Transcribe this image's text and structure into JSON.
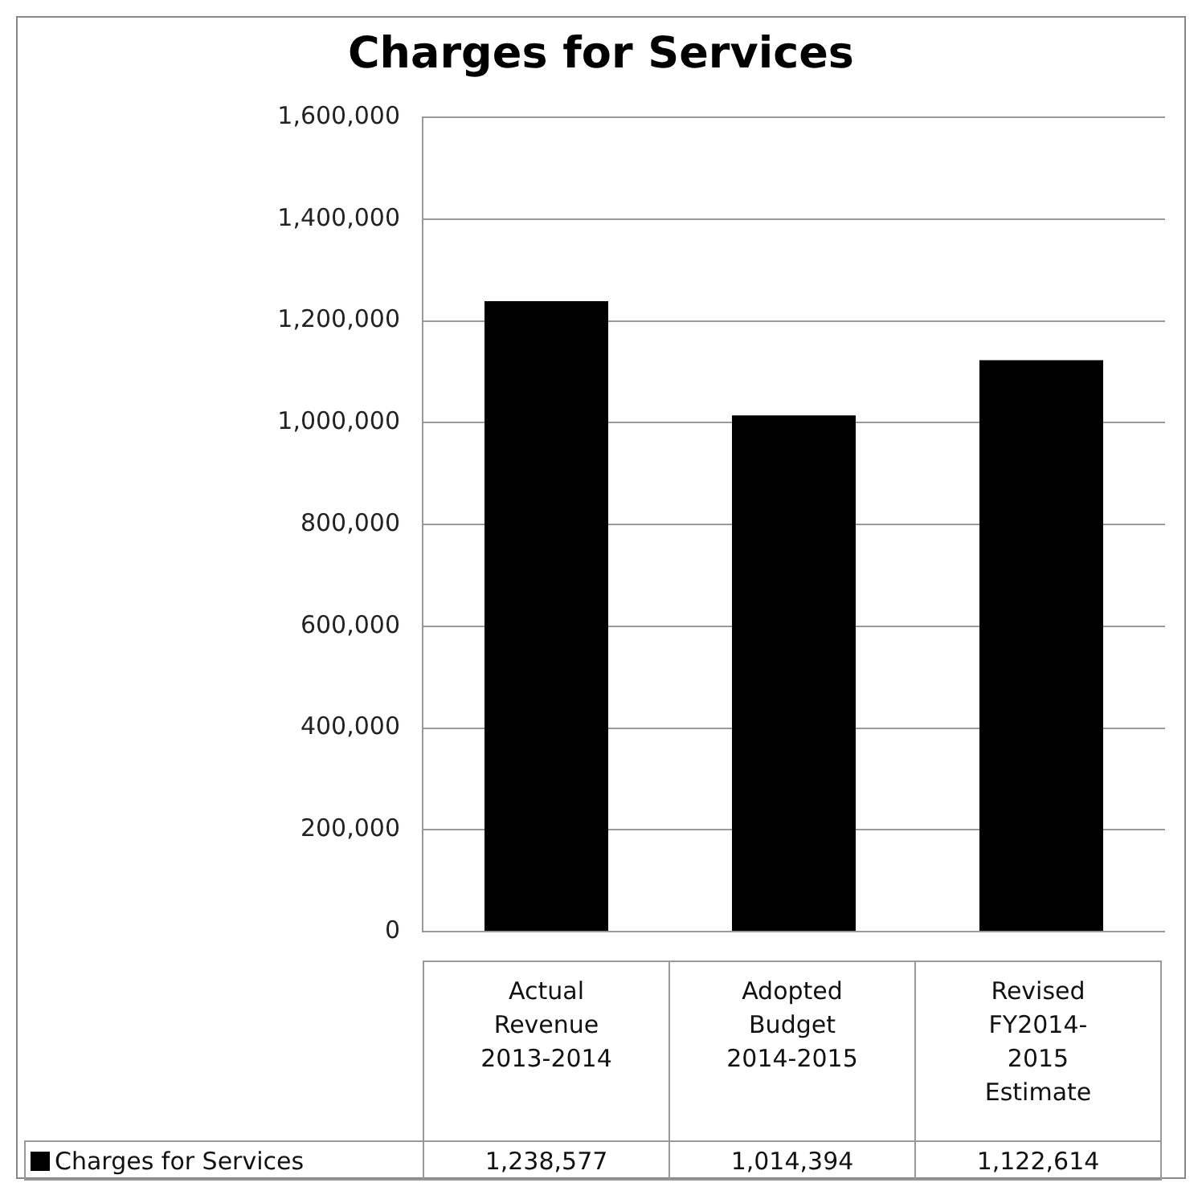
{
  "chart_data": {
    "type": "bar",
    "title": "Charges for Services",
    "categories": [
      "Actual Revenue 2013-2014",
      "Adopted Budget 2014-2015",
      "Revised FY2014-2015 Estimate"
    ],
    "series": [
      {
        "name": "Charges for Services",
        "color": "#000000",
        "values": [
          1238577,
          1014394,
          1122614
        ],
        "value_labels": [
          "1,238,577",
          "1,014,394",
          "1,122,614"
        ]
      }
    ],
    "ylim": [
      0,
      1600000
    ],
    "yticks": [
      {
        "value": 0,
        "label": "0"
      },
      {
        "value": 200000,
        "label": "200,000"
      },
      {
        "value": 400000,
        "label": "400,000"
      },
      {
        "value": 600000,
        "label": "600,000"
      },
      {
        "value": 800000,
        "label": "800,000"
      },
      {
        "value": 1000000,
        "label": "1,000,000"
      },
      {
        "value": 1200000,
        "label": "1,200,000"
      },
      {
        "value": 1400000,
        "label": "1,400,000"
      },
      {
        "value": 1600000,
        "label": "1,600,000"
      }
    ],
    "grid": "y",
    "legend": "bottom"
  }
}
